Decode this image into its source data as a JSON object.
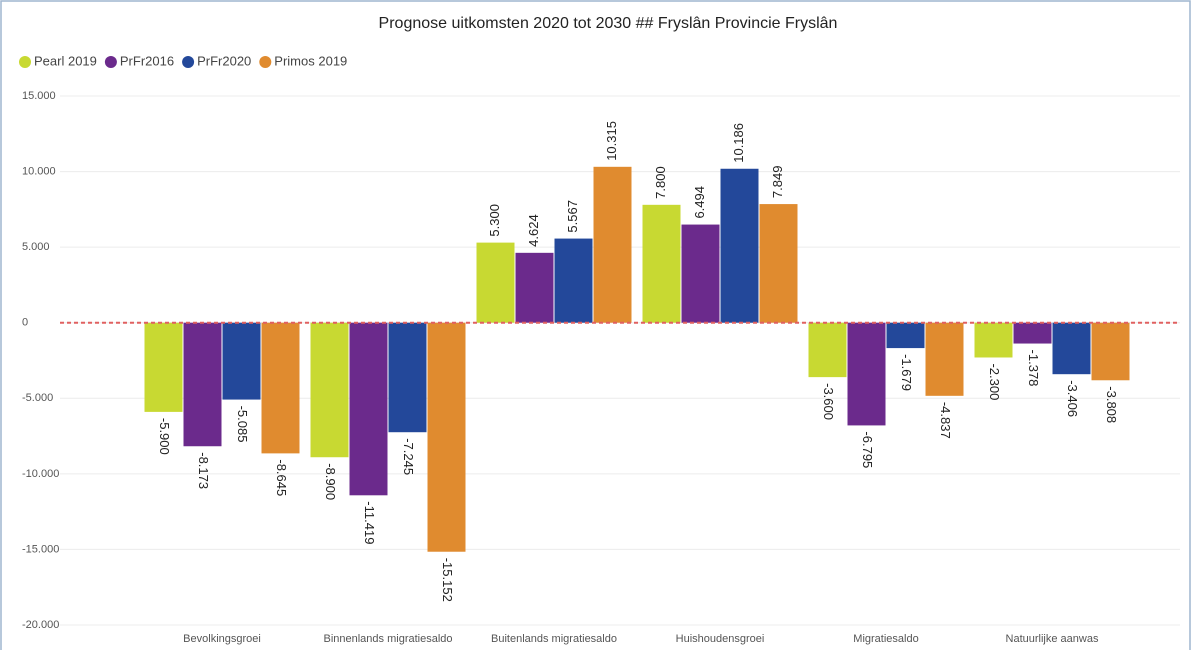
{
  "chart_data": {
    "type": "bar",
    "title": "Prognose uitkomsten 2020 tot 2030  ## Fryslân Provincie Fryslân",
    "categories": [
      "Bevolkingsgroei",
      "Binnenlands migratiesaldo",
      "Buitenlands migratiesaldo",
      "Huishoudensgroei",
      "Migratiesaldo",
      "Natuurlijke aanwas"
    ],
    "series": [
      {
        "name": "Pearl 2019",
        "color": "#c8d932",
        "values": [
          -5900,
          -8900,
          5300,
          7800,
          -3600,
          -2300
        ],
        "value_labels": [
          "-5.900",
          "-8.900",
          "5.300",
          "7.800",
          "-3.600",
          "-2.300"
        ]
      },
      {
        "name": "PrFr2016",
        "color": "#6b2a8c",
        "values": [
          -8173,
          -11419,
          4624,
          6494,
          -6795,
          -1378
        ],
        "value_labels": [
          "-8.173",
          "-11.419",
          "4.624",
          "6.494",
          "-6.795",
          "-1.378"
        ]
      },
      {
        "name": "PrFr2020",
        "color": "#23489a",
        "values": [
          -5085,
          -7245,
          5567,
          10186,
          -1679,
          -3406
        ],
        "value_labels": [
          "-5.085",
          "-7.245",
          "5.567",
          "10.186",
          "-1.679",
          "-3.406"
        ]
      },
      {
        "name": "Primos 2019",
        "color": "#e08b2f",
        "values": [
          -8645,
          -15152,
          10315,
          7849,
          -4837,
          -3808
        ],
        "value_labels": [
          "-8.645",
          "-15.152",
          "10.315",
          "7.849",
          "-4.837",
          "-3.808"
        ]
      }
    ],
    "ylim": [
      -20000,
      15000
    ],
    "yticks": [
      {
        "value": -20000,
        "label": "-20.000"
      },
      {
        "value": -15000,
        "label": "-15.000"
      },
      {
        "value": -10000,
        "label": "-10.000"
      },
      {
        "value": -5000,
        "label": "-5.000"
      },
      0,
      {
        "value": 5000,
        "label": "5.000"
      },
      {
        "value": 10000,
        "label": "10.000"
      },
      {
        "value": 15000,
        "label": "15.000"
      }
    ],
    "grid": true,
    "legend": "top-left"
  }
}
